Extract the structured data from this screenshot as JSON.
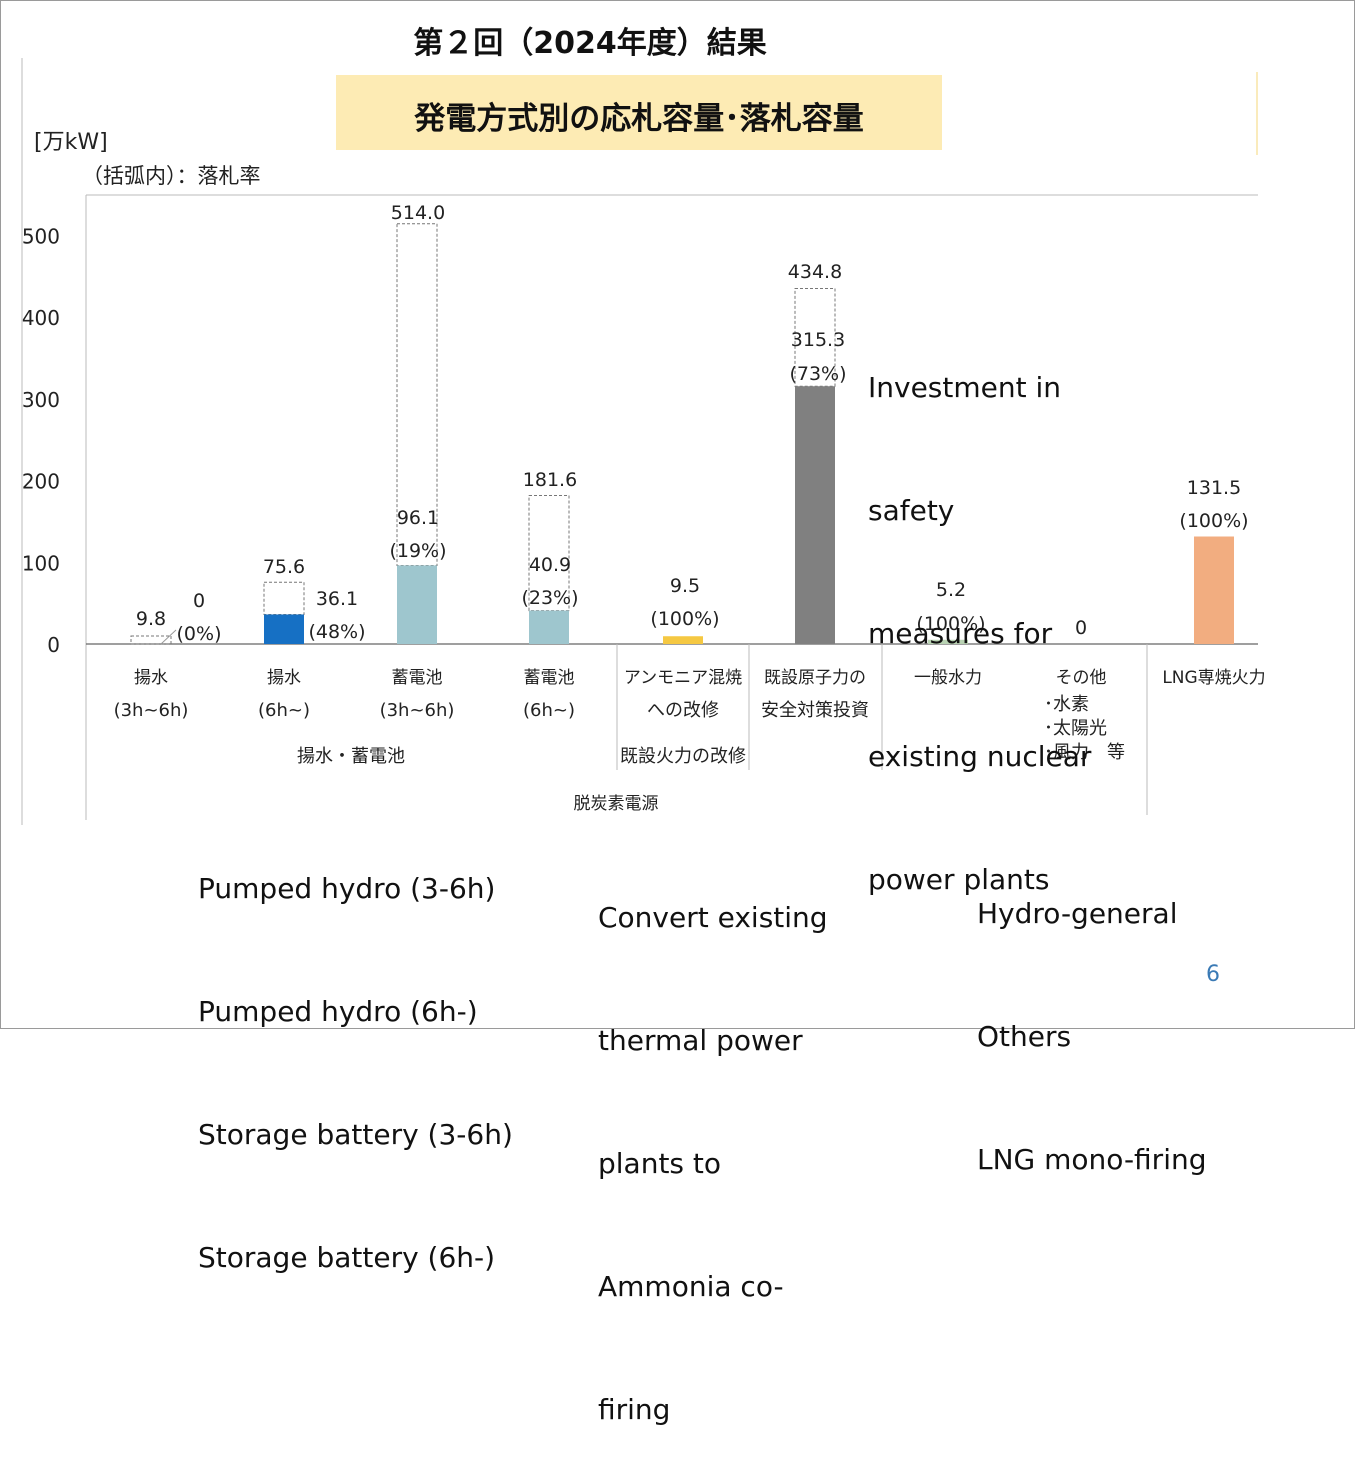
{
  "slide": {
    "title": "第２回（2024年度）結果",
    "subtitle": "発電方式別の応札容量･落札容量",
    "unit_label": "[万kW]",
    "note": "（括弧内）：落札率",
    "page_number": "6"
  },
  "chart_data": {
    "type": "bar",
    "ylim": [
      0,
      514
    ],
    "yticks": [
      0,
      100,
      200,
      300,
      400,
      500
    ],
    "grid": false,
    "categories": [
      {
        "line1": "揚水",
        "line2": "(3h~6h)"
      },
      {
        "line1": "揚水",
        "line2": "(6h~)"
      },
      {
        "line1": "蓄電池",
        "line2": "(3h~6h)"
      },
      {
        "line1": "蓄電池",
        "line2": "(6h~)"
      },
      {
        "line1": "アンモニア混焼",
        "line2": "への改修"
      },
      {
        "line1": "既設原子力の",
        "line2": "安全対策投資"
      },
      {
        "line1": "一般水力",
        "line2": ""
      },
      {
        "line1": "その他",
        "line2": ""
      },
      {
        "line1": "LNG専焼火力",
        "line2": ""
      }
    ],
    "series": [
      {
        "name": "応札容量",
        "values": [
          9.8,
          75.6,
          514.0,
          181.6,
          9.5,
          434.8,
          5.2,
          0,
          131.5
        ]
      },
      {
        "name": "落札容量",
        "values": [
          0,
          36.1,
          96.1,
          40.9,
          9.5,
          315.3,
          5.2,
          0,
          131.5
        ]
      }
    ],
    "bid_labels": [
      "9.8",
      "75.6",
      "514.0",
      "181.6",
      "",
      "434.8",
      "",
      "",
      ""
    ],
    "award_labels": [
      "0",
      "36.1",
      "96.1",
      "40.9",
      "9.5",
      "315.3",
      "5.2",
      "0",
      "131.5"
    ],
    "rate_labels": [
      "(0%)",
      "(48%)",
      "(19%)",
      "(23%)",
      "(100%)",
      "(73%)",
      "(100%)",
      "",
      "(100%)"
    ],
    "bar_colors": [
      "#ffffff",
      "#1670c4",
      "#9ec6ce",
      "#9ec6ce",
      "#f5c842",
      "#808080",
      "#b9d3b3",
      "#ffffff",
      "#f2ad80"
    ],
    "others_items": [
      "･水素",
      "･太陽光",
      "･風力　等"
    ],
    "group_labels": [
      "揚水・蓄電池",
      "既設火力の改修",
      "脱炭素電源"
    ]
  },
  "annotations": {
    "nuclear": [
      "Investment in",
      "safety",
      "measures for",
      "existing nuclear",
      "power plants"
    ],
    "left": [
      "Pumped hydro (3-6h)",
      "Pumped hydro (6h-)",
      "Storage battery (3-6h)",
      "Storage battery (6h-)"
    ],
    "middle": [
      "Convert existing",
      "thermal power",
      "plants to",
      "Ammonia co-",
      "firing"
    ],
    "right": [
      "Hydro-general",
      "Others",
      "LNG mono-firing"
    ]
  }
}
